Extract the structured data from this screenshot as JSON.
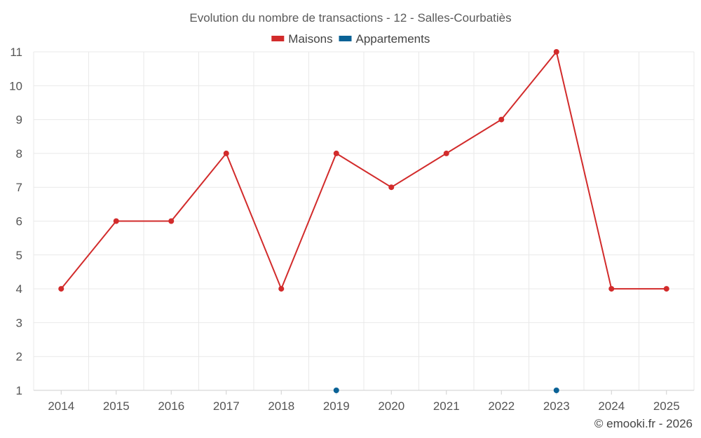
{
  "chart_data": {
    "type": "line",
    "title": "Evolution du nombre de transactions - 12 - Salles-Courbatiès",
    "x": [
      "2014",
      "2015",
      "2016",
      "2017",
      "2018",
      "2019",
      "2020",
      "2021",
      "2022",
      "2023",
      "2024",
      "2025"
    ],
    "series": [
      {
        "name": "Maisons",
        "color": "#d22b2b",
        "values": [
          4,
          6,
          6,
          8,
          4,
          8,
          7,
          8,
          9,
          11,
          4,
          4
        ]
      },
      {
        "name": "Appartements",
        "color": "#0a6296",
        "values": [
          null,
          null,
          null,
          null,
          null,
          1,
          null,
          null,
          null,
          1,
          null,
          null
        ]
      }
    ],
    "yticks": [
      1,
      2,
      3,
      4,
      5,
      6,
      7,
      8,
      9,
      10,
      11
    ],
    "ylim": [
      1,
      11
    ],
    "legend": "top-center",
    "grid": true
  },
  "credit": "© emooki.fr - 2026"
}
